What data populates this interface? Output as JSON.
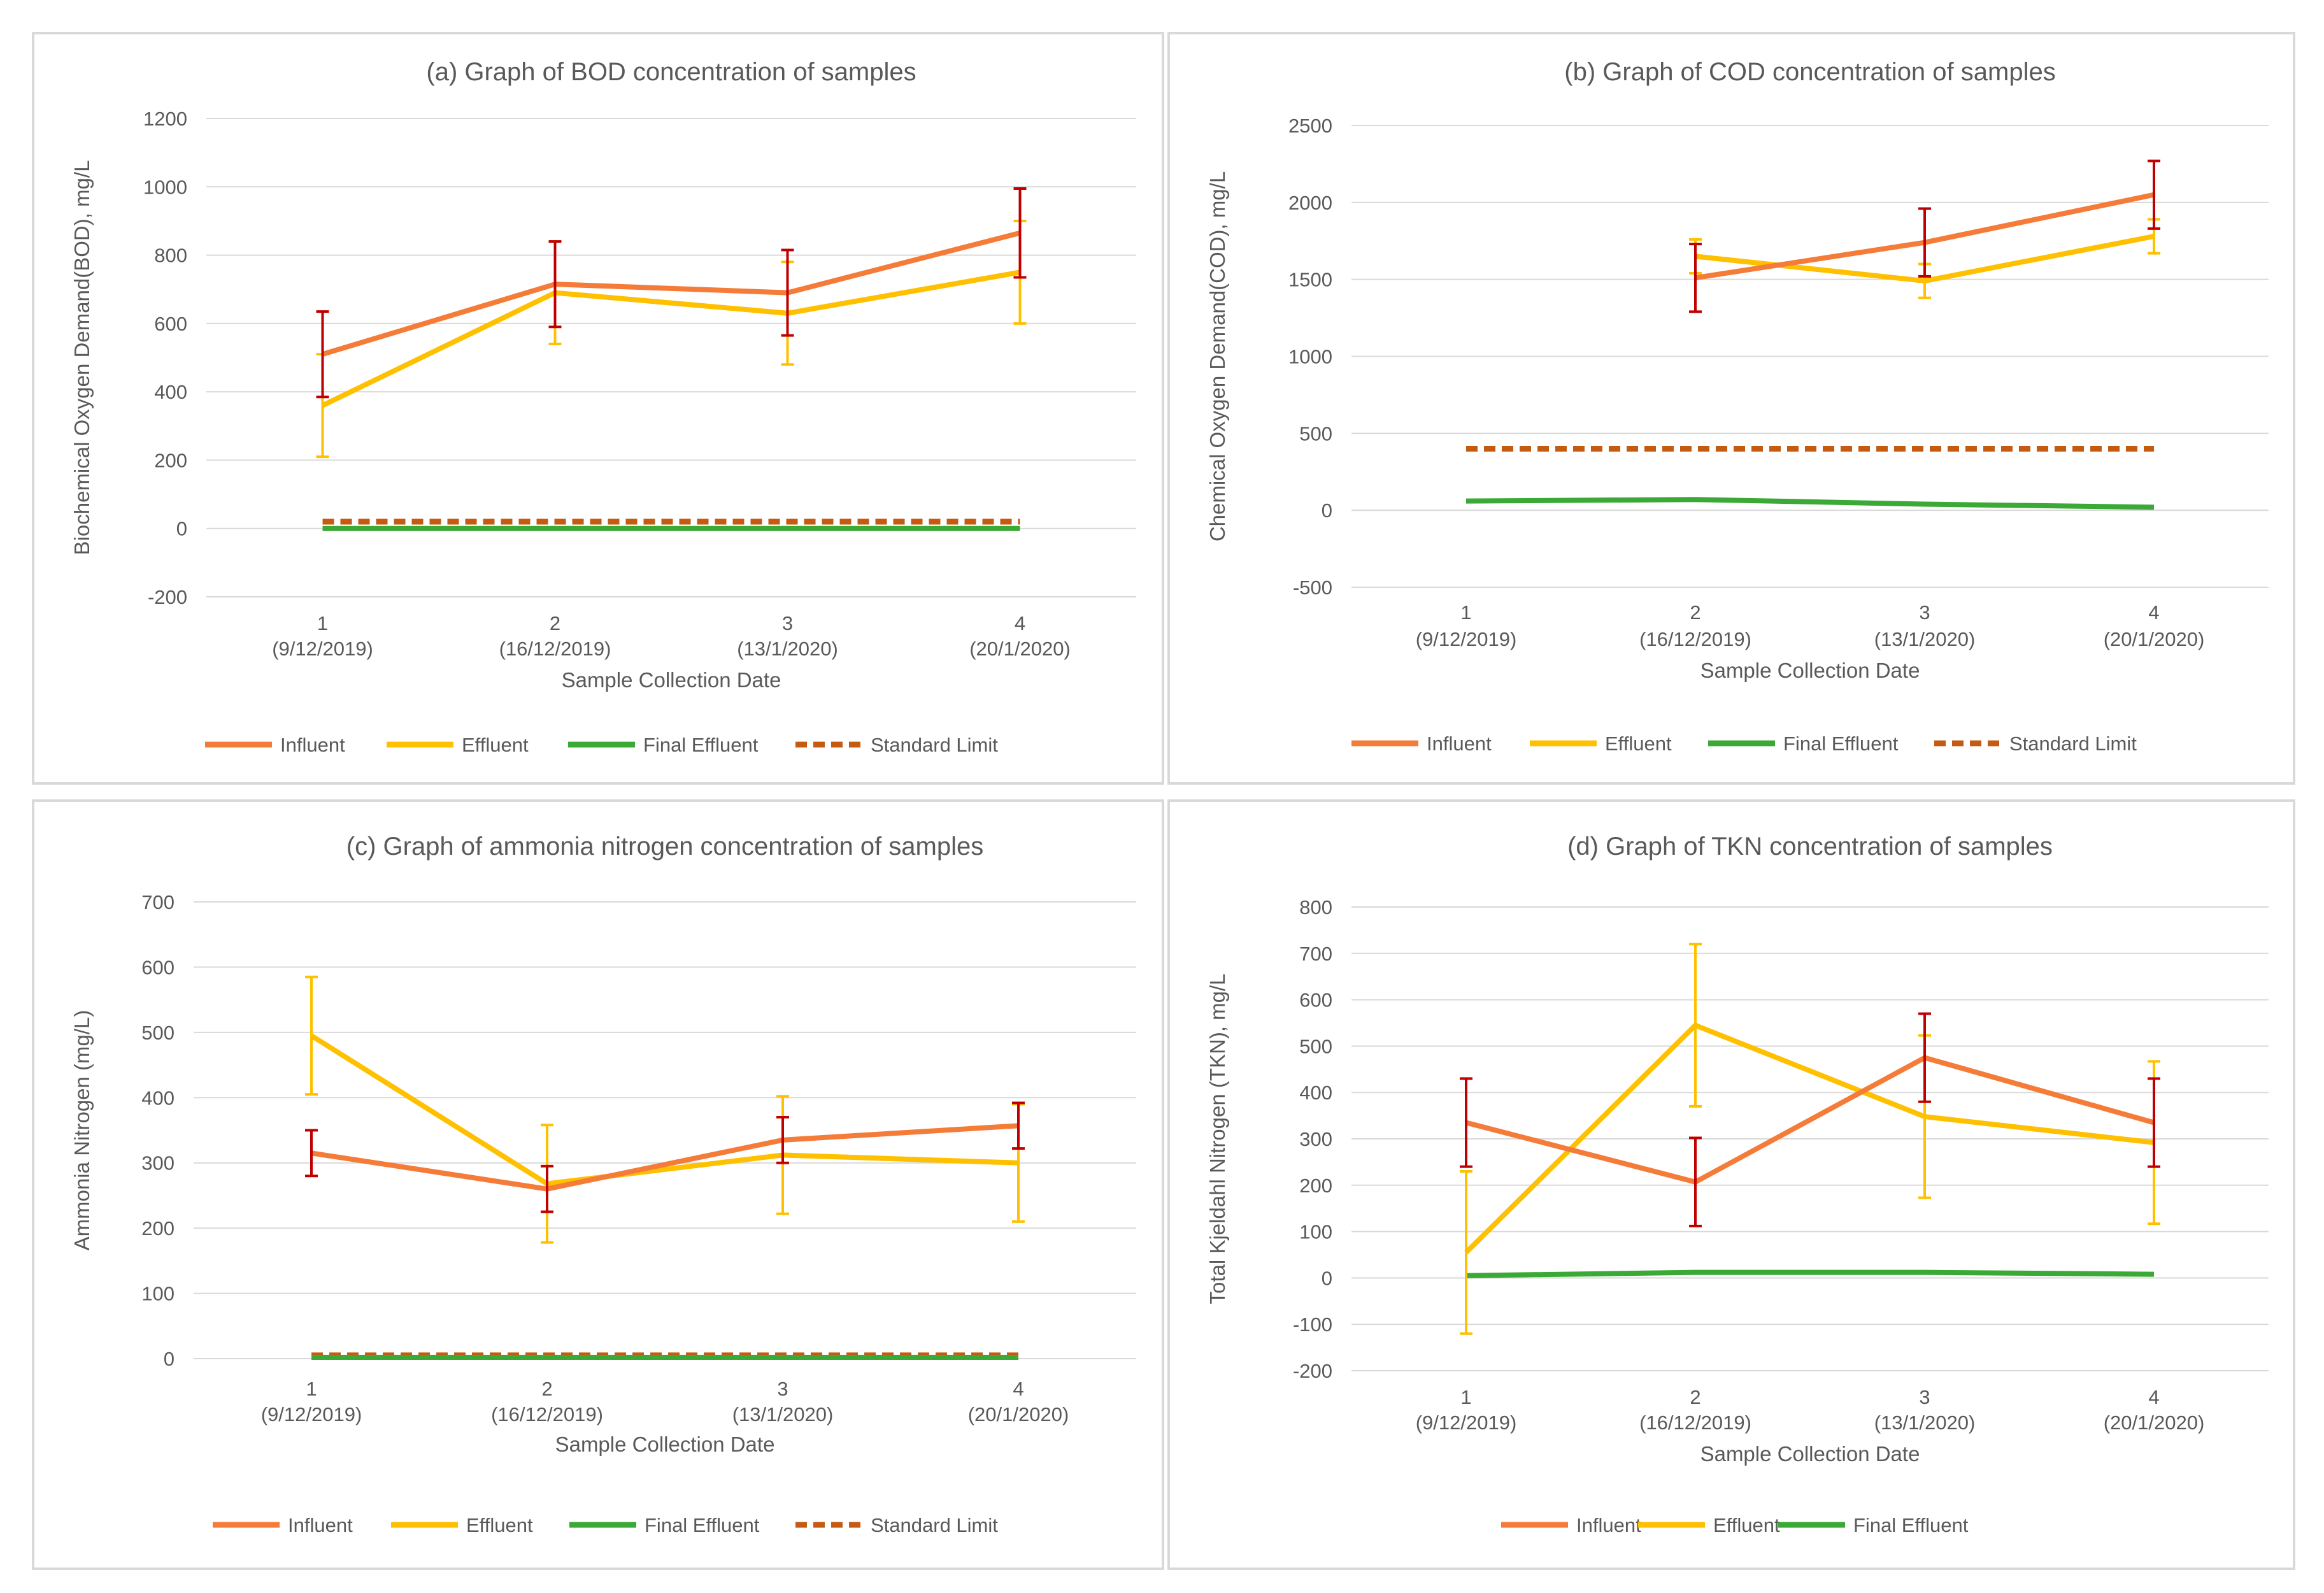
{
  "colors": {
    "Influent": "#f47c38",
    "Effluent": "#ffc000",
    "Final Effluent": "#3aa935",
    "Standard Limit": "#c55a11",
    "influent_error": "#c00000",
    "effluent_error": "#ffc000",
    "gridline": "#d9d9d9",
    "text": "#595959"
  },
  "chart_data": [
    {
      "id": "bod",
      "type": "line",
      "title": "(a) Graph of BOD concentration of samples",
      "xlabel": "Sample Collection Date",
      "ylabel": "Biochemical Oxygen Demand(BOD), mg/L",
      "categories": [
        "1",
        "2",
        "3",
        "4"
      ],
      "category_dates": [
        "(9/12/2019)",
        "(16/12/2019)",
        "(13/1/2020)",
        "(20/1/2020)"
      ],
      "ylim": [
        -200,
        1200
      ],
      "ystep": 200,
      "yticks": [
        "-200",
        "0",
        "200",
        "400",
        "600",
        "800",
        "1000",
        "1200"
      ],
      "grid": true,
      "legend_position": "bottom",
      "legend": [
        "Influent",
        "Effluent",
        "Final Effluent",
        "Standard Limit"
      ],
      "series": [
        {
          "name": "Influent",
          "values": [
            510,
            715,
            690,
            865
          ],
          "error": [
            125,
            125,
            125,
            130
          ]
        },
        {
          "name": "Effluent",
          "values": [
            360,
            690,
            630,
            750
          ],
          "error": [
            150,
            150,
            150,
            150
          ]
        },
        {
          "name": "Final Effluent",
          "values": [
            0,
            0,
            0,
            0
          ]
        },
        {
          "name": "Standard Limit",
          "values": [
            20,
            20,
            20,
            20
          ]
        }
      ]
    },
    {
      "id": "cod",
      "type": "line",
      "title": "(b) Graph of COD concentration of samples",
      "xlabel": "Sample Collection Date",
      "ylabel": "Chemical Oxygen Demand(COD), mg/L",
      "categories": [
        "1",
        "2",
        "3",
        "4"
      ],
      "category_dates": [
        "(9/12/2019)",
        "(16/12/2019)",
        "(13/1/2020)",
        "(20/1/2020)"
      ],
      "ylim": [
        -500,
        2500
      ],
      "ystep": 500,
      "yticks": [
        "-500",
        "0",
        "500",
        "1000",
        "1500",
        "2000",
        "2500"
      ],
      "grid": true,
      "legend_position": "bottom",
      "legend": [
        "Influent",
        "Effluent",
        "Final Effluent",
        "Standard Limit"
      ],
      "series": [
        {
          "name": "Influent",
          "values": [
            null,
            1510,
            1740,
            2050
          ],
          "error": [
            null,
            220,
            220,
            220
          ]
        },
        {
          "name": "Effluent",
          "values": [
            null,
            1650,
            1490,
            1780
          ],
          "error": [
            null,
            110,
            110,
            110
          ]
        },
        {
          "name": "Final Effluent",
          "values": [
            60,
            70,
            40,
            20
          ]
        },
        {
          "name": "Standard Limit",
          "values": [
            400,
            400,
            400,
            400
          ]
        }
      ]
    },
    {
      "id": "ammonia",
      "type": "line",
      "title": "(c) Graph of ammonia nitrogen concentration of samples",
      "xlabel": "Sample Collection Date",
      "ylabel": "Ammonia Nitrogen (mg/L)",
      "categories": [
        "1",
        "2",
        "3",
        "4"
      ],
      "category_dates": [
        "(9/12/2019)",
        "(16/12/2019)",
        "(13/1/2020)",
        "(20/1/2020)"
      ],
      "ylim": [
        0,
        700
      ],
      "ystep": 100,
      "yticks": [
        "0",
        "100",
        "200",
        "300",
        "400",
        "500",
        "600",
        "700"
      ],
      "grid": true,
      "legend_position": "bottom",
      "legend": [
        "Influent",
        "Effluent",
        "Final Effluent",
        "Standard Limit"
      ],
      "series": [
        {
          "name": "Influent",
          "values": [
            315,
            260,
            335,
            357
          ],
          "error": [
            35,
            35,
            35,
            35
          ]
        },
        {
          "name": "Effluent",
          "values": [
            495,
            268,
            312,
            300
          ],
          "error": [
            90,
            90,
            90,
            90
          ]
        },
        {
          "name": "Final Effluent",
          "values": [
            2,
            2,
            2,
            2
          ]
        },
        {
          "name": "Standard Limit",
          "values": [
            5,
            5,
            5,
            5
          ]
        }
      ]
    },
    {
      "id": "tkn",
      "type": "line",
      "title": "(d) Graph of TKN concentration of samples",
      "xlabel": "Sample Collection Date",
      "ylabel": "Total Kjeldahl Nitrogen (TKN), mg/L",
      "categories": [
        "1",
        "2",
        "3",
        "4"
      ],
      "category_dates": [
        "(9/12/2019)",
        "(16/12/2019)",
        "(13/1/2020)",
        "(20/1/2020)"
      ],
      "ylim": [
        -200,
        800
      ],
      "ystep": 100,
      "yticks": [
        "-200",
        "-100",
        "0",
        "100",
        "200",
        "300",
        "400",
        "500",
        "600",
        "700",
        "800"
      ],
      "grid": true,
      "legend_position": "bottom",
      "legend": [
        "Influent",
        "Effluent",
        "Final Effluent"
      ],
      "series": [
        {
          "name": "Influent",
          "values": [
            335,
            207,
            475,
            335
          ],
          "error": [
            95,
            95,
            95,
            95
          ]
        },
        {
          "name": "Effluent",
          "values": [
            55,
            545,
            348,
            292
          ],
          "error": [
            175,
            175,
            175,
            175
          ]
        },
        {
          "name": "Final Effluent",
          "values": [
            5,
            12,
            12,
            8
          ]
        }
      ]
    }
  ]
}
